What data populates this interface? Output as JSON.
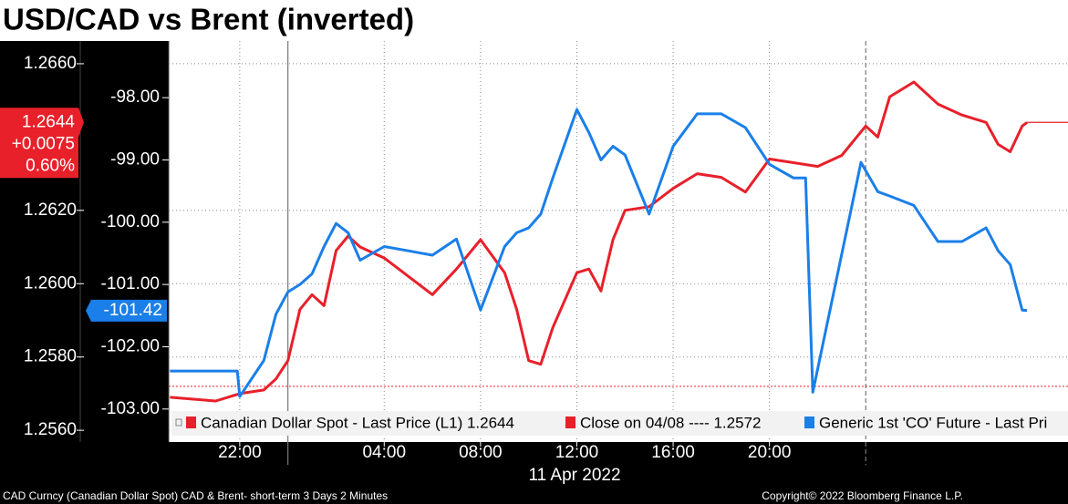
{
  "chart_data": {
    "type": "line",
    "title": "USD/CAD vs Brent (inverted)",
    "date_label": "11 Apr 2022",
    "footer_left": "CAD Curncy (Canadian Dollar Spot) CAD & Brent- short-term 3 Days 2 Minutes",
    "footer_right": "Copyright© 2022 Bloomberg Finance L.P.",
    "xlim": [
      -4.95,
      32.4
    ],
    "xticks": [
      {
        "value": -2,
        "label": "22:00"
      },
      {
        "value": 4,
        "label": "04:00"
      },
      {
        "value": 8,
        "label": "08:00"
      },
      {
        "value": 12,
        "label": "12:00"
      },
      {
        "value": 16,
        "label": "16:00"
      },
      {
        "value": 20,
        "label": "20:00"
      }
    ],
    "day_breaks": [
      0,
      24
    ],
    "ylim": [
      1.25568,
      1.26662
    ],
    "yticks": [
      {
        "value": 1.266,
        "label": "1.2660"
      },
      {
        "value": 1.262,
        "label": "1.2620"
      },
      {
        "value": 1.26,
        "label": "1.2600"
      },
      {
        "value": 1.258,
        "label": "1.2580"
      },
      {
        "value": 1.256,
        "label": "1.2560"
      }
    ],
    "y2lim": [
      -103.53,
      -97.09
    ],
    "y2ticks": [
      {
        "value": -98,
        "label": "-98.00"
      },
      {
        "value": -99,
        "label": "-99.00"
      },
      {
        "value": -100,
        "label": "-100.00"
      },
      {
        "value": -101,
        "label": "-101.00"
      },
      {
        "value": -102,
        "label": "-102.00"
      },
      {
        "value": -103,
        "label": "-103.00"
      }
    ],
    "grid": true,
    "series": [
      {
        "name": "Canadian Dollar Spot - Last Price (L1) 1.2644",
        "color": "#e8202a",
        "axis": "y",
        "change": "+0.0075",
        "change_pct": "0.60%",
        "x": [
          -4.9,
          -3,
          -2,
          -1,
          -0.5,
          0,
          0.5,
          1,
          1.5,
          2,
          2.5,
          3,
          4,
          5,
          6,
          7,
          8,
          9,
          9.5,
          10,
          10.5,
          11,
          12,
          12.5,
          13,
          13.5,
          14,
          15,
          16,
          17,
          18,
          19,
          20,
          21,
          22,
          23,
          24,
          24.5,
          25,
          26,
          27,
          28,
          29,
          29.5,
          30,
          30.5,
          30.7
        ],
        "values": [
          1.2569,
          1.2568,
          1.257,
          1.2571,
          1.2574,
          1.2579,
          1.2593,
          1.2597,
          1.2594,
          1.2609,
          1.2613,
          1.261,
          1.2607,
          1.2602,
          1.2597,
          1.2604,
          1.2612,
          1.2603,
          1.2593,
          1.2579,
          1.2578,
          1.2588,
          1.2603,
          1.2604,
          1.2598,
          1.2612,
          1.262,
          1.2621,
          1.2626,
          1.263,
          1.2629,
          1.2625,
          1.2634,
          1.2633,
          1.2632,
          1.2635,
          1.2643,
          1.264,
          1.2651,
          1.2655,
          1.2649,
          1.2646,
          1.2644,
          1.2638,
          1.2636,
          1.2643,
          1.2644
        ]
      },
      {
        "name": "Generic 1st 'CO' Future - Last Pri",
        "color": "#1a7fe8",
        "axis": "y2",
        "x": [
          -4.9,
          -3,
          -2.1,
          -2,
          -1,
          -0.5,
          0,
          0.5,
          1,
          1.5,
          2,
          2.5,
          3,
          4,
          5,
          6,
          7,
          8,
          9,
          9.5,
          10,
          10.5,
          11,
          12,
          12.5,
          13,
          13.5,
          14,
          15,
          16,
          17,
          18,
          19,
          20,
          21,
          21.5,
          21.8,
          23.8,
          24.5,
          25,
          26,
          27,
          28,
          29,
          29.5,
          30,
          30.5,
          30.7
        ],
        "values": [
          -102.39,
          -102.39,
          -102.39,
          -102.8,
          -102.22,
          -101.48,
          -101.12,
          -101.0,
          -100.83,
          -100.39,
          -100.02,
          -100.17,
          -100.61,
          -100.39,
          -100.46,
          -100.53,
          -100.27,
          -101.41,
          -100.39,
          -100.17,
          -100.09,
          -99.87,
          -99.29,
          -98.19,
          -98.56,
          -99.0,
          -98.78,
          -98.92,
          -99.87,
          -98.78,
          -98.26,
          -98.26,
          -98.48,
          -99.07,
          -99.29,
          -99.29,
          -102.73,
          -99.04,
          -99.51,
          -99.58,
          -99.73,
          -100.31,
          -100.31,
          -100.09,
          -100.46,
          -100.68,
          -101.41,
          -101.42
        ]
      }
    ],
    "reference_lines": [
      {
        "name": "Close on 04/08 ---- 1.2572",
        "value": 1.2572,
        "color": "#e8202a"
      }
    ]
  }
}
